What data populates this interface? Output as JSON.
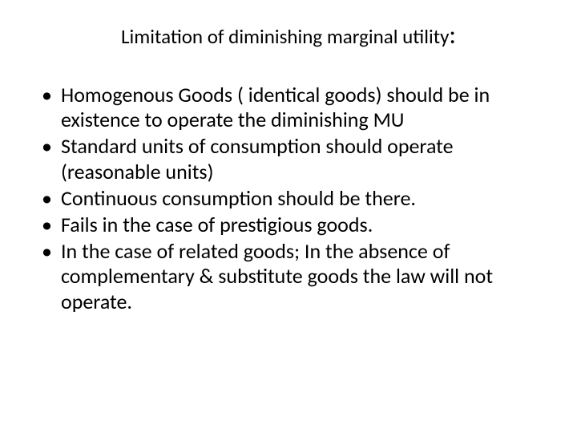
{
  "title": {
    "text": "Limitation of diminishing  marginal utility",
    "colon": ":"
  },
  "bullets": [
    "Homogenous Goods ( identical goods) should be in existence to operate the diminishing MU",
    "Standard units of consumption should operate (reasonable units)",
    "Continuous consumption should be there.",
    "Fails in the case of prestigious goods.",
    "In the case of related goods; In the absence of complementary & substitute goods the law will not operate."
  ],
  "style": {
    "background_color": "#ffffff",
    "text_color": "#000000",
    "title_fontsize": 25,
    "colon_fontsize": 32,
    "body_fontsize": 26,
    "font_family": "Calibri, Arial, sans-serif"
  }
}
